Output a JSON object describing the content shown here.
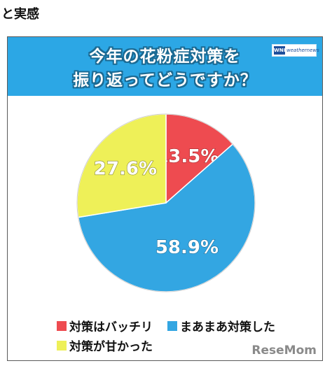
{
  "page": {
    "heading": "と実感"
  },
  "card": {
    "title_line1": "今年の花粉症対策を",
    "title_line2": "振り返ってどうですか？",
    "logo_mark": "WNI",
    "logo_text": "weathernews",
    "watermark": "ReseMom"
  },
  "colors": {
    "banner": "#2ca7e5",
    "slice_red": "#ee4b50",
    "slice_blue": "#33a6e2",
    "slice_yellow": "#eef058"
  },
  "chart_data": {
    "type": "pie",
    "title": "今年の花粉症対策を振り返ってどうですか？",
    "slices": [
      {
        "label": "対策はバッチリ",
        "value": 13.5,
        "display": "13.5%",
        "color": "#ee4b50"
      },
      {
        "label": "まあまあ対策した",
        "value": 58.9,
        "display": "58.9%",
        "color": "#33a6e2"
      },
      {
        "label": "対策が甘かった",
        "value": 27.6,
        "display": "27.6%",
        "color": "#eef058"
      }
    ],
    "legend_placement": "bottom"
  }
}
